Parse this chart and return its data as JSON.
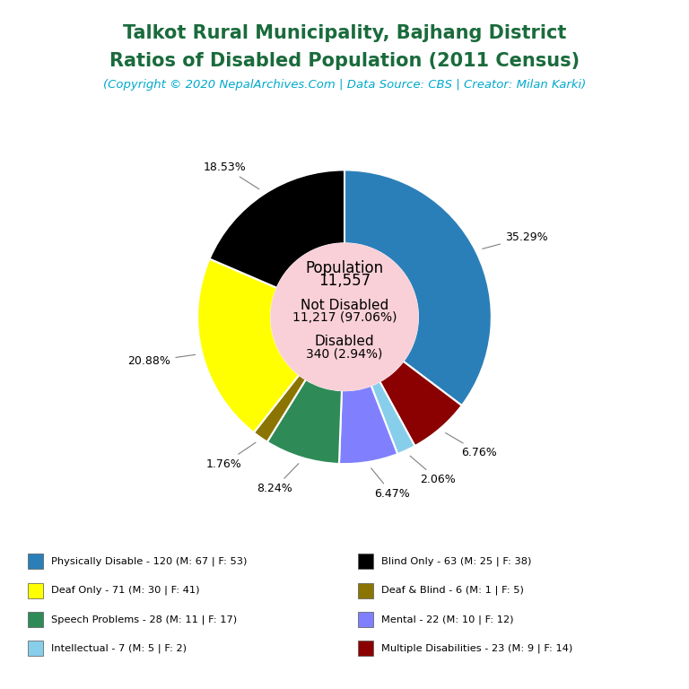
{
  "title_line1": "Talkot Rural Municipality, Bajhang District",
  "title_line2": "Ratios of Disabled Population (2011 Census)",
  "subtitle": "(Copyright © 2020 NepalArchives.Com | Data Source: CBS | Creator: Milan Karki)",
  "title_color": "#1a6b3c",
  "subtitle_color": "#00aacc",
  "center_bg": "#f9d0d8",
  "slices": [
    {
      "label": "Physically Disable - 120 (M: 67 | F: 53)",
      "value": 120,
      "pct": "35.29%",
      "color": "#2b7fb8"
    },
    {
      "label": "Multiple Disabilities - 23 (M: 9 | F: 14)",
      "value": 23,
      "pct": "6.76%",
      "color": "#8b0000"
    },
    {
      "label": "Intellectual - 7 (M: 5 | F: 2)",
      "value": 7,
      "pct": "2.06%",
      "color": "#87ceeb"
    },
    {
      "label": "Mental - 22 (M: 10 | F: 12)",
      "value": 22,
      "pct": "6.47%",
      "color": "#8080ff"
    },
    {
      "label": "Speech Problems - 28 (M: 11 | F: 17)",
      "value": 28,
      "pct": "8.24%",
      "color": "#2e8b57"
    },
    {
      "label": "Deaf & Blind - 6 (M: 1 | F: 5)",
      "value": 6,
      "pct": "1.76%",
      "color": "#8b7500"
    },
    {
      "label": "Deaf Only - 71 (M: 30 | F: 41)",
      "value": 71,
      "pct": "20.88%",
      "color": "#ffff00"
    },
    {
      "label": "Blind Only - 63 (M: 25 | F: 38)",
      "value": 63,
      "pct": "18.53%",
      "color": "#000000"
    }
  ],
  "bg_color": "#ffffff",
  "outer_r": 1.0,
  "inner_r": 0.5,
  "legend_items": [
    {
      "label": "Physically Disable - 120 (M: 67 | F: 53)",
      "color": "#2b7fb8"
    },
    {
      "label": "Deaf Only - 71 (M: 30 | F: 41)",
      "color": "#ffff00"
    },
    {
      "label": "Speech Problems - 28 (M: 11 | F: 17)",
      "color": "#2e8b57"
    },
    {
      "label": "Intellectual - 7 (M: 5 | F: 2)",
      "color": "#87ceeb"
    },
    {
      "label": "Blind Only - 63 (M: 25 | F: 38)",
      "color": "#000000"
    },
    {
      "label": "Deaf & Blind - 6 (M: 1 | F: 5)",
      "color": "#8b7500"
    },
    {
      "label": "Mental - 22 (M: 10 | F: 12)",
      "color": "#8080ff"
    },
    {
      "label": "Multiple Disabilities - 23 (M: 9 | F: 14)",
      "color": "#8b0000"
    }
  ]
}
